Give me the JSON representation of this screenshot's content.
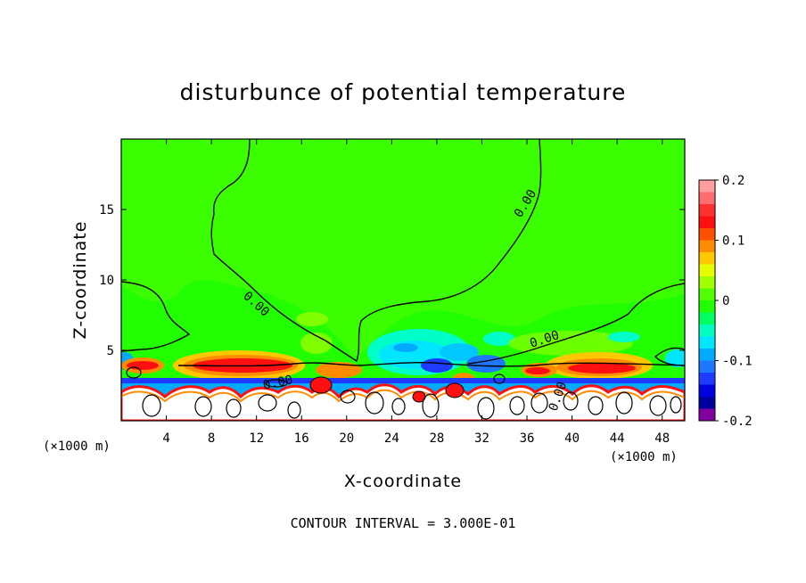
{
  "chart_data": {
    "type": "heatmap",
    "title": "disturbunce of potential temperature",
    "xlabel": "X-coordinate",
    "ylabel": "Z-coordinate",
    "x_unit_left": "(×1000 m)",
    "x_unit_right": "(×1000 m)",
    "xlim": [
      0,
      50
    ],
    "ylim": [
      0,
      20
    ],
    "x_ticks": [
      4,
      8,
      12,
      16,
      20,
      24,
      28,
      32,
      36,
      40,
      44,
      48
    ],
    "y_ticks": [
      5,
      10,
      15
    ],
    "contour_labels": [
      "0.00",
      "0.00",
      "0.00",
      "0.00",
      "0.00"
    ],
    "footer": "CONTOUR INTERVAL = 3.000E-01",
    "colorbar": {
      "min": -0.2,
      "max": 0.2,
      "tick_labels": [
        "0.2",
        "0.1",
        "0",
        "-0.1",
        "-0.2"
      ],
      "tick_values": [
        0.2,
        0.1,
        0,
        -0.1,
        -0.2
      ],
      "colors": [
        "#ff9e9e",
        "#ff6e6e",
        "#ff3030",
        "#ff1010",
        "#ff5000",
        "#ff8c00",
        "#ffc800",
        "#e6ff00",
        "#a0ff00",
        "#50ff00",
        "#20ff00",
        "#00ff60",
        "#00ffc0",
        "#00e6ff",
        "#00aaff",
        "#1e78ff",
        "#1e3cff",
        "#0000e0",
        "#0000a0",
        "#8000a0"
      ]
    }
  }
}
